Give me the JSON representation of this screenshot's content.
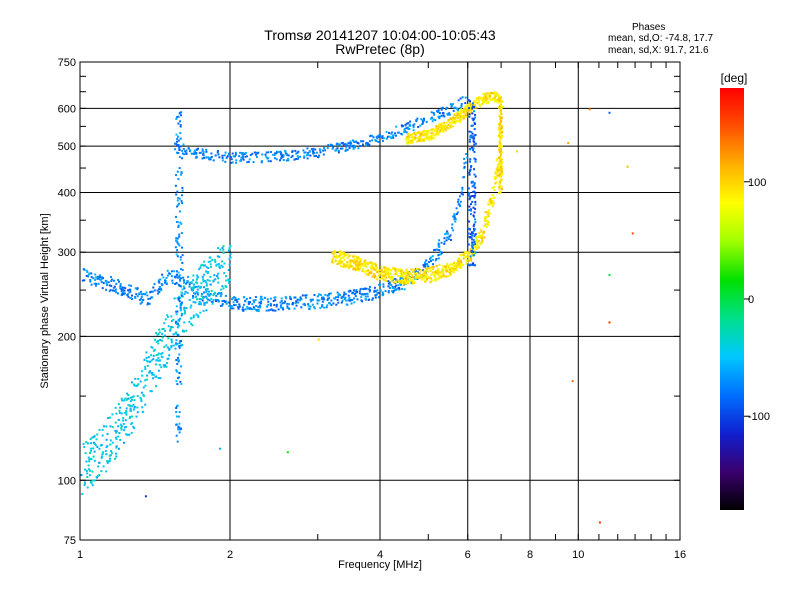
{
  "header": {
    "title_line1": "Tromsø 20141207 10:04:00-10:05:43",
    "title_line2": "RwPretec (8p)",
    "stats_heading": "Phases",
    "stats_o": "mean, sd,O: -74.8, 17.7",
    "stats_x": "mean, sd,X:  91.7, 21.6"
  },
  "colorbar": {
    "unit_label": "[deg]",
    "tick_labels": [
      "100",
      "0",
      "-100"
    ],
    "tick_values": [
      100,
      0,
      -100
    ],
    "range": [
      -180,
      180
    ],
    "colormap": [
      "#000000",
      "#3a006e",
      "#1020d0",
      "#0070ff",
      "#00c8ff",
      "#00e08a",
      "#00e000",
      "#a0ff00",
      "#ffff00",
      "#ffb000",
      "#ff5000",
      "#ff0000"
    ]
  },
  "chart_data": {
    "type": "scatter",
    "title": "Tromsø 20141207 10:04:00-10:05:43",
    "subtitle": "RwPretec (8p)",
    "xlabel": "Frequency [MHz]",
    "ylabel": "Stationary phase Virtual Height [km]",
    "xscale": "log",
    "yscale": "log",
    "xlim": [
      1,
      16
    ],
    "ylim": [
      75,
      750
    ],
    "x_ticks": [
      1,
      2,
      4,
      6,
      8,
      10,
      16
    ],
    "x_tick_labels": [
      "1",
      "2",
      "4",
      "6",
      "8",
      "10",
      "16"
    ],
    "y_ticks": [
      75,
      100,
      200,
      300,
      400,
      500,
      600,
      750
    ],
    "y_tick_labels": [
      "75",
      "100",
      "200",
      "300",
      "400",
      "500",
      "600",
      "750"
    ],
    "grid": true,
    "color_encodes": "phase (deg)",
    "series": [
      {
        "mode": "O",
        "trace_lower": {
          "x": [
            1.0,
            1.2,
            1.35,
            1.5,
            1.7,
            2.0,
            2.5,
            3.0,
            3.5,
            4.0,
            4.5,
            5.0,
            5.5,
            5.8,
            6.0
          ],
          "y": [
            270,
            255,
            240,
            270,
            250,
            235,
            235,
            238,
            243,
            250,
            262,
            285,
            330,
            400,
            520
          ]
        },
        "trace_upper": {
          "x": [
            1.55,
            1.7,
            2.0,
            2.5,
            3.0,
            3.5,
            4.0,
            4.5,
            5.0,
            5.5,
            6.0
          ],
          "y": [
            500,
            485,
            475,
            478,
            488,
            505,
            525,
            548,
            575,
            600,
            630
          ]
        },
        "low_frequency_spread": {
          "x": [
            1.0,
            1.1,
            1.2,
            1.3,
            1.4,
            1.5,
            1.6,
            1.8,
            2.0
          ],
          "y": [
            105,
            115,
            130,
            150,
            175,
            200,
            230,
            260,
            290
          ]
        },
        "phase_deg": -74.8
      },
      {
        "mode": "X",
        "trace_lower": {
          "x": [
            3.2,
            3.6,
            4.0,
            4.5,
            5.0,
            5.5,
            6.0,
            6.4,
            6.7,
            6.9
          ],
          "y": [
            295,
            285,
            272,
            268,
            270,
            278,
            295,
            330,
            390,
            470
          ]
        },
        "trace_upper": {
          "x": [
            4.5,
            5.0,
            5.5,
            6.0,
            6.4,
            6.8,
            7.0
          ],
          "y": [
            520,
            530,
            560,
            600,
            630,
            640,
            620
          ]
        },
        "phase_deg": 91.7
      },
      {
        "mode": "scattered",
        "x": [
          1.35,
          1.9,
          2.6,
          3.0,
          7.5,
          9.5,
          10.5,
          11.5,
          11.5,
          11.5,
          12.5,
          12.8,
          9.7,
          11.0
        ],
        "y": [
          93,
          117,
          115,
          198,
          490,
          510,
          600,
          590,
          270,
          215,
          455,
          330,
          162,
          82
        ],
        "phase_deg": [
          -110,
          -60,
          20,
          100,
          100,
          120,
          130,
          -90,
          0,
          160,
          110,
          150,
          140,
          160
        ]
      }
    ]
  }
}
